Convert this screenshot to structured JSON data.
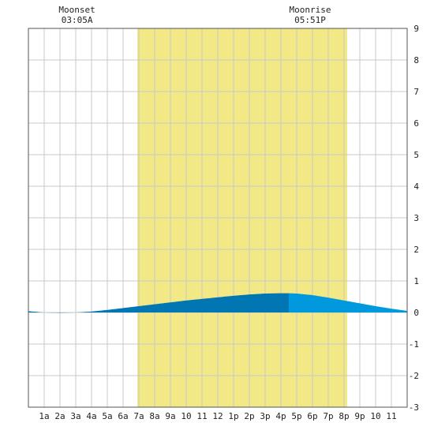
{
  "chart_data": {
    "type": "area",
    "x_unit": "hour of day",
    "x_ticks": [
      "1a",
      "2a",
      "3a",
      "4a",
      "5a",
      "6a",
      "7a",
      "8a",
      "9a",
      "10",
      "11",
      "12",
      "1p",
      "2p",
      "3p",
      "4p",
      "5p",
      "6p",
      "7p",
      "8p",
      "9p",
      "10",
      "11"
    ],
    "x_range": [
      0,
      24
    ],
    "ylim": [
      -3,
      9
    ],
    "y_ticks": [
      "-3",
      "-2",
      "-1",
      "0",
      "1",
      "2",
      "3",
      "4",
      "5",
      "6",
      "7",
      "8",
      "9"
    ],
    "y_axis_side": "right",
    "grid": true,
    "daylight": {
      "start_hour": 6.9,
      "end_hour": 20.2,
      "color": "#f2e886"
    },
    "moon_events": [
      {
        "label": "Moonset",
        "time": "03:05A",
        "hour": 3.08
      },
      {
        "label": "Moonrise",
        "time": "05:51P",
        "hour": 17.85
      }
    ],
    "series": [
      {
        "x": [
          0,
          1,
          2,
          3,
          4,
          5,
          6,
          7,
          8,
          9,
          10,
          11,
          12,
          13,
          14,
          15,
          16,
          16.5,
          17,
          18,
          19,
          20,
          21,
          22,
          23,
          24
        ],
        "y": [
          0.04,
          0.0,
          -0.01,
          0.0,
          0.03,
          0.08,
          0.14,
          0.2,
          0.26,
          0.32,
          0.38,
          0.43,
          0.48,
          0.53,
          0.57,
          0.6,
          0.61,
          0.61,
          0.6,
          0.55,
          0.47,
          0.38,
          0.29,
          0.2,
          0.12,
          0.05
        ]
      }
    ],
    "highlight_span": {
      "start_hour": 16.5,
      "end_hour": 24
    },
    "colors": {
      "fill": "#0077b3",
      "fill_highlight": "#0099dd",
      "grid": "#c8c8c8",
      "axis": "#555555"
    }
  }
}
